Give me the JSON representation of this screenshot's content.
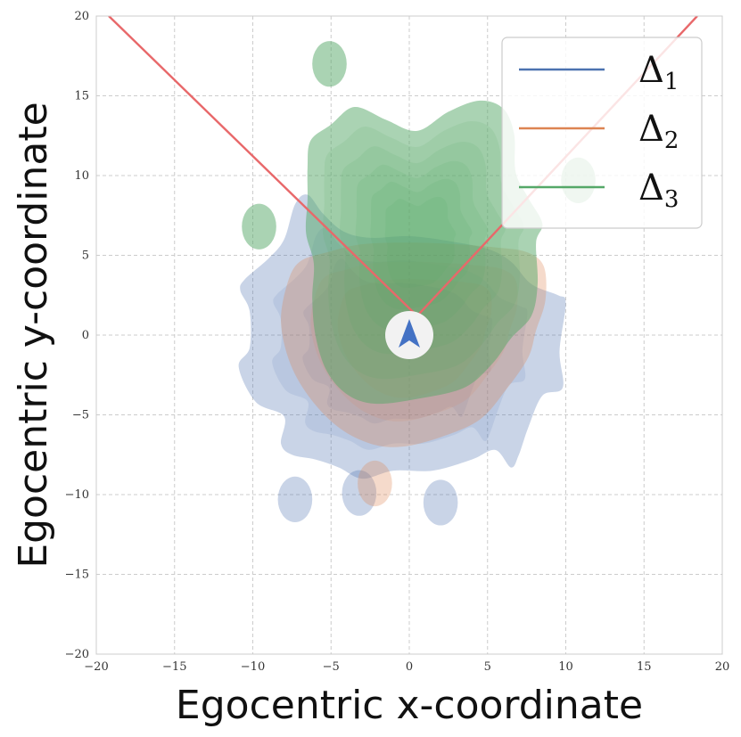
{
  "chart_data": {
    "type": "density-contour",
    "title": "",
    "xlabel": "Egocentric x-coordinate",
    "ylabel": "Egocentric y-coordinate",
    "xlim": [
      -20,
      20
    ],
    "ylim": [
      -20,
      20
    ],
    "xticks": [
      -20,
      -15,
      -10,
      -5,
      0,
      5,
      10,
      15,
      20
    ],
    "yticks": [
      -20,
      -15,
      -10,
      -5,
      0,
      5,
      10,
      15,
      20
    ],
    "xtick_labels": [
      "−20",
      "−15",
      "−10",
      "−5",
      "0",
      "5",
      "10",
      "15",
      "20"
    ],
    "ytick_labels": [
      "−20",
      "−15",
      "−10",
      "−5",
      "0",
      "5",
      "10",
      "15",
      "20"
    ],
    "grid": true,
    "grid_style": "dashed",
    "legend_position": "top-right",
    "series": [
      {
        "name": "Δ1",
        "label_base": "Δ",
        "label_sub": "1",
        "color": "#4c72b0",
        "outer_contour": [
          [
            -10.5,
            3.5
          ],
          [
            -9,
            4.8
          ],
          [
            -8,
            6
          ],
          [
            -7.3,
            8.2
          ],
          [
            -6.5,
            8.8
          ],
          [
            -5.5,
            7.6
          ],
          [
            -4.2,
            6.5
          ],
          [
            -2.5,
            6.1
          ],
          [
            0,
            6.2
          ],
          [
            2.5,
            5.9
          ],
          [
            5,
            5.4
          ],
          [
            6.5,
            4.6
          ],
          [
            7.8,
            3.2
          ],
          [
            9.5,
            2.5
          ],
          [
            10,
            2
          ],
          [
            9.6,
            -1
          ],
          [
            9.8,
            -3.3
          ],
          [
            8.5,
            -3.8
          ],
          [
            7.6,
            -5.8
          ],
          [
            7,
            -7.5
          ],
          [
            6.5,
            -8.3
          ],
          [
            5.5,
            -7.2
          ],
          [
            4,
            -7.8
          ],
          [
            1.5,
            -8.5
          ],
          [
            -1,
            -8.5
          ],
          [
            -3,
            -9
          ],
          [
            -4.5,
            -8.3
          ],
          [
            -6,
            -7.8
          ],
          [
            -7.5,
            -7.5
          ],
          [
            -8.2,
            -6.8
          ],
          [
            -8,
            -5.1
          ],
          [
            -9.8,
            -4.2
          ],
          [
            -10.9,
            -2
          ],
          [
            -10.2,
            -0.8
          ],
          [
            -10.2,
            1.5
          ],
          [
            -10.8,
            2.8
          ]
        ],
        "islands": [
          [
            -7.3,
            -10.3
          ],
          [
            -3.2,
            -9.9
          ],
          [
            2,
            -10.5
          ]
        ]
      },
      {
        "name": "Δ2",
        "label_base": "Δ",
        "label_sub": "2",
        "color": "#dd8452",
        "outer_contour": [
          [
            -7.8,
            3.2
          ],
          [
            -7,
            4.6
          ],
          [
            -5.2,
            5.2
          ],
          [
            -3,
            5.7
          ],
          [
            0,
            5.8
          ],
          [
            3,
            5.7
          ],
          [
            5.5,
            5.5
          ],
          [
            7.5,
            5.2
          ],
          [
            8.6,
            4.3
          ],
          [
            8.7,
            2.2
          ],
          [
            8.1,
            0.3
          ],
          [
            7.6,
            -1.4
          ],
          [
            6.2,
            -3.4
          ],
          [
            4.5,
            -5.3
          ],
          [
            2,
            -6.4
          ],
          [
            -0.5,
            -7
          ],
          [
            -2.5,
            -6.8
          ],
          [
            -4.5,
            -5.8
          ],
          [
            -6.3,
            -4
          ],
          [
            -7.6,
            -1.8
          ],
          [
            -8.2,
            0.8
          ]
        ],
        "islands": [
          [
            -2.2,
            -9.3
          ]
        ]
      },
      {
        "name": "Δ3",
        "label_base": "Δ",
        "label_sub": "3",
        "color": "#55a868",
        "outer_contour": [
          [
            -6.5,
            10.5
          ],
          [
            -6.3,
            12.2
          ],
          [
            -5,
            13.2
          ],
          [
            -3.5,
            14.3
          ],
          [
            -1.5,
            13.5
          ],
          [
            0.5,
            12.8
          ],
          [
            2.5,
            14
          ],
          [
            4.5,
            14.7
          ],
          [
            6,
            14.2
          ],
          [
            6.7,
            12.6
          ],
          [
            6.8,
            10.2
          ],
          [
            7.6,
            8.6
          ],
          [
            8.5,
            7
          ],
          [
            8.1,
            5.8
          ],
          [
            8.2,
            3.2
          ],
          [
            7.8,
            1.2
          ],
          [
            6.5,
            -0.2
          ],
          [
            5.3,
            -1.8
          ],
          [
            3.5,
            -3.3
          ],
          [
            0.5,
            -4
          ],
          [
            -2.2,
            -4.3
          ],
          [
            -4,
            -3.7
          ],
          [
            -5.3,
            -2.2
          ],
          [
            -6,
            0
          ],
          [
            -6.2,
            2.3
          ],
          [
            -6.1,
            4.5
          ],
          [
            -6.6,
            6.4
          ],
          [
            -6.5,
            8.5
          ]
        ],
        "islands": [
          [
            -5.1,
            17
          ],
          [
            -9.6,
            6.8
          ],
          [
            10.8,
            9.7
          ]
        ]
      }
    ],
    "annotations": {
      "field_of_view_lines": [
        {
          "color": "#e8686a",
          "from": [
            0.5,
            1.2
          ],
          "to": [
            -19.2,
            20
          ]
        },
        {
          "color": "#e8686a",
          "from": [
            0.5,
            1.2
          ],
          "to": [
            18.4,
            20
          ]
        }
      ],
      "agent_marker": {
        "x": 0,
        "y": 0,
        "icon": "arrowhead-icon",
        "color": "#4472c4"
      }
    }
  }
}
